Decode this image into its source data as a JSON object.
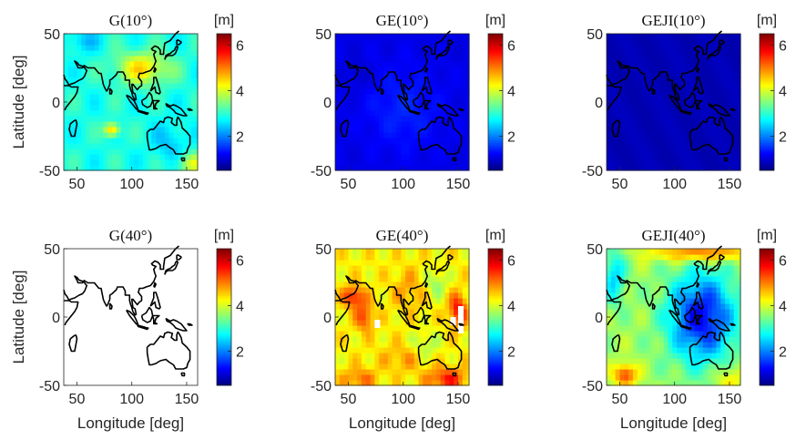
{
  "figure": {
    "xlabel": "Longitude [deg]",
    "ylabel": "Latitude [deg]",
    "colorbar_unit": "[m]",
    "colormap": "jet",
    "coastline_color": "#000000",
    "nodata_color": "#ffffff"
  },
  "chart_data": [
    {
      "type": "heatmap",
      "title": "G(10°)",
      "x": [
        40,
        160
      ],
      "y": [
        -50,
        50
      ],
      "xticks": [
        50,
        100,
        150
      ],
      "yticks": [
        -50,
        0,
        50
      ],
      "xlim": [
        38,
        160
      ],
      "ylim": [
        -50,
        50
      ],
      "clim": [
        0.5,
        6.5
      ],
      "cticks": [
        2,
        4,
        6
      ],
      "value_range": [
        2.2,
        4.8
      ],
      "typical_value": 3.0,
      "features": [
        "~4.5 m band north of the equator (80–140°E)",
        "~4.8 m hotspot near 80°E, 20°S"
      ]
    },
    {
      "type": "heatmap",
      "title": "GE(10°)",
      "x": [
        40,
        160
      ],
      "y": [
        -50,
        50
      ],
      "xticks": [
        50,
        100,
        150
      ],
      "yticks": [
        -50,
        0,
        50
      ],
      "xlim": [
        38,
        160
      ],
      "ylim": [
        -50,
        50
      ],
      "clim": [
        0.5,
        6.5
      ],
      "cticks": [
        2,
        4,
        6
      ],
      "value_range": [
        0.8,
        1.6
      ],
      "typical_value": 1.1
    },
    {
      "type": "heatmap",
      "title": "GEJI(10°)",
      "x": [
        40,
        160
      ],
      "y": [
        -50,
        50
      ],
      "xticks": [
        50,
        100,
        150
      ],
      "yticks": [
        -50,
        0,
        50
      ],
      "xlim": [
        38,
        160
      ],
      "ylim": [
        -50,
        50
      ],
      "clim": [
        0.5,
        6.5
      ],
      "cticks": [
        2,
        4,
        6
      ],
      "value_range": [
        0.6,
        1.0
      ],
      "typical_value": 0.8
    },
    {
      "type": "heatmap",
      "title": "G(40°)",
      "x": [
        40,
        160
      ],
      "y": [
        -50,
        50
      ],
      "xticks": [
        50,
        100,
        150
      ],
      "yticks": [
        -50,
        0,
        50
      ],
      "xlim": [
        38,
        160
      ],
      "ylim": [
        -50,
        50
      ],
      "clim": [
        0.5,
        6.5
      ],
      "cticks": [
        2,
        4,
        6
      ],
      "value_range": null,
      "note": "no data (blank field)"
    },
    {
      "type": "heatmap",
      "title": "GE(40°)",
      "x": [
        40,
        160
      ],
      "y": [
        -50,
        50
      ],
      "xticks": [
        50,
        100,
        150
      ],
      "yticks": [
        -50,
        0,
        50
      ],
      "xlim": [
        38,
        160
      ],
      "ylim": [
        -50,
        50
      ],
      "clim": [
        0.5,
        6.5
      ],
      "cticks": [
        2,
        4,
        6
      ],
      "value_range": [
        3.5,
        5.8
      ],
      "typical_value": 4.5,
      "features": [
        "~5.5 m red patches near 50°E 15°N, 65°E 0°, 150°E 5°N, 140°E 45°S"
      ],
      "gaps": [
        {
          "lon": [
            74,
            79
          ],
          "lat": [
            -8,
            -2
          ]
        },
        {
          "lon": [
            143,
            148
          ],
          "lat": [
            -6,
            0
          ]
        },
        {
          "lon": [
            150,
            155
          ],
          "lat": [
            -12,
            8
          ]
        }
      ]
    },
    {
      "type": "heatmap",
      "title": "GEJI(40°)",
      "x": [
        40,
        160
      ],
      "y": [
        -50,
        50
      ],
      "xticks": [
        50,
        100,
        150
      ],
      "yticks": [
        -50,
        0,
        50
      ],
      "xlim": [
        38,
        160
      ],
      "ylim": [
        -50,
        50
      ],
      "clim": [
        0.5,
        6.5
      ],
      "cticks": [
        2,
        4,
        6
      ],
      "value_range": [
        1.0,
        5.5
      ],
      "typical_value": 2.2,
      "features": [
        "~1.2 m minimum over 90–150°E, 30°S–30°N",
        "~5 m at north edge and 55°E 40°S"
      ]
    }
  ]
}
